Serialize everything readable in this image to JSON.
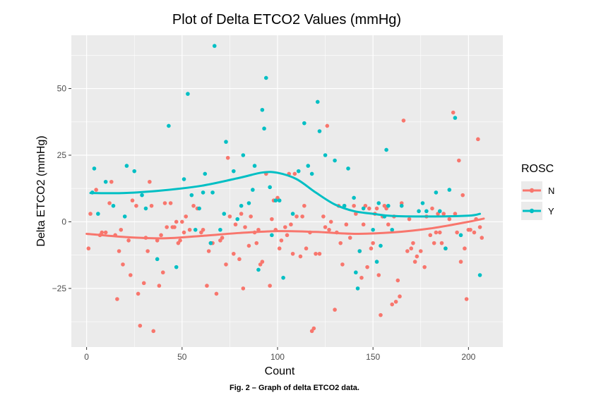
{
  "caption": "Fig. 2 – Graph of delta ETCO2 data.",
  "chart_data": {
    "type": "scatter",
    "title": "Plot of Delta ETCO2 Values (mmHg)",
    "xlabel": "Count",
    "ylabel": "Delta ETCO2 (mmHg)",
    "xlim": [
      -8,
      218
    ],
    "ylim": [
      -47,
      70
    ],
    "xticks": [
      0,
      50,
      100,
      150,
      200
    ],
    "yticks": [
      -25,
      0,
      25,
      50
    ],
    "yticklabels": [
      "−25",
      "0",
      "25",
      "50"
    ],
    "grid": true,
    "panel_background": "#ebebeb",
    "legend": {
      "title": "ROSC",
      "position": "right"
    },
    "series": [
      {
        "name": "N",
        "color": "#f8766d",
        "points": [
          [
            1,
            -10
          ],
          [
            2,
            3
          ],
          [
            5,
            12
          ],
          [
            7,
            -5
          ],
          [
            8,
            -4
          ],
          [
            10,
            -4
          ],
          [
            12,
            7
          ],
          [
            13,
            15
          ],
          [
            15,
            -5
          ],
          [
            16,
            -29
          ],
          [
            17,
            -11
          ],
          [
            18,
            -3
          ],
          [
            19,
            -16
          ],
          [
            22,
            -7
          ],
          [
            23,
            -20
          ],
          [
            24,
            8
          ],
          [
            26,
            6
          ],
          [
            27,
            -27
          ],
          [
            28,
            -39
          ],
          [
            30,
            -23
          ],
          [
            31,
            -6
          ],
          [
            32,
            -11
          ],
          [
            33,
            15
          ],
          [
            34,
            6
          ],
          [
            35,
            -41
          ],
          [
            37,
            -7
          ],
          [
            38,
            -24
          ],
          [
            39,
            -5
          ],
          [
            40,
            -19
          ],
          [
            41,
            7
          ],
          [
            42,
            -2
          ],
          [
            44,
            7
          ],
          [
            45,
            -2
          ],
          [
            46,
            -2
          ],
          [
            47,
            0
          ],
          [
            48,
            -8
          ],
          [
            49,
            -7
          ],
          [
            50,
            0
          ],
          [
            51,
            -4
          ],
          [
            52,
            2
          ],
          [
            54,
            -3
          ],
          [
            56,
            6
          ],
          [
            58,
            5
          ],
          [
            60,
            -4
          ],
          [
            61,
            -3
          ],
          [
            63,
            -24
          ],
          [
            64,
            -11
          ],
          [
            65,
            -8
          ],
          [
            66,
            -8
          ],
          [
            68,
            -27
          ],
          [
            70,
            -7
          ],
          [
            71,
            -6
          ],
          [
            73,
            -16
          ],
          [
            74,
            24
          ],
          [
            75,
            2
          ],
          [
            77,
            -12
          ],
          [
            78,
            -1
          ],
          [
            80,
            -14
          ],
          [
            81,
            3
          ],
          [
            82,
            -25
          ],
          [
            83,
            -2
          ],
          [
            85,
            -9
          ],
          [
            86,
            2
          ],
          [
            88,
            -4
          ],
          [
            89,
            -8
          ],
          [
            90,
            -3
          ],
          [
            91,
            -16
          ],
          [
            92,
            -15
          ],
          [
            94,
            18
          ],
          [
            96,
            -24
          ],
          [
            97,
            1
          ],
          [
            98,
            8
          ],
          [
            99,
            -3
          ],
          [
            100,
            9
          ],
          [
            101,
            -10
          ],
          [
            102,
            -7
          ],
          [
            104,
            -2
          ],
          [
            105,
            -5
          ],
          [
            106,
            18
          ],
          [
            107,
            -1
          ],
          [
            108,
            -12
          ],
          [
            109,
            18
          ],
          [
            110,
            2
          ],
          [
            112,
            -13
          ],
          [
            113,
            2
          ],
          [
            114,
            6
          ],
          [
            115,
            -10
          ],
          [
            117,
            -4
          ],
          [
            118,
            -41
          ],
          [
            119,
            -40
          ],
          [
            120,
            -12
          ],
          [
            122,
            -12
          ],
          [
            124,
            2
          ],
          [
            125,
            -2
          ],
          [
            126,
            36
          ],
          [
            127,
            -3
          ],
          [
            128,
            0
          ],
          [
            130,
            -33
          ],
          [
            131,
            -4
          ],
          [
            132,
            6
          ],
          [
            133,
            -8
          ],
          [
            134,
            -16
          ],
          [
            135,
            6
          ],
          [
            136,
            -1
          ],
          [
            138,
            -6
          ],
          [
            140,
            6
          ],
          [
            141,
            3
          ],
          [
            143,
            -11
          ],
          [
            144,
            -21
          ],
          [
            145,
            -1
          ],
          [
            146,
            6
          ],
          [
            147,
            -17
          ],
          [
            148,
            5
          ],
          [
            149,
            -10
          ],
          [
            150,
            -8
          ],
          [
            151,
            3
          ],
          [
            152,
            5
          ],
          [
            153,
            -20
          ],
          [
            154,
            -35
          ],
          [
            155,
            2
          ],
          [
            156,
            6
          ],
          [
            157,
            5
          ],
          [
            158,
            -1
          ],
          [
            160,
            -31
          ],
          [
            161,
            2
          ],
          [
            162,
            -30
          ],
          [
            163,
            -22
          ],
          [
            164,
            -28
          ],
          [
            165,
            7
          ],
          [
            166,
            38
          ],
          [
            168,
            -11
          ],
          [
            169,
            1
          ],
          [
            170,
            -10
          ],
          [
            171,
            -8
          ],
          [
            172,
            -15
          ],
          [
            173,
            -13
          ],
          [
            175,
            -11
          ],
          [
            177,
            -17
          ],
          [
            178,
            2
          ],
          [
            180,
            -5
          ],
          [
            181,
            5
          ],
          [
            182,
            -8
          ],
          [
            183,
            -4
          ],
          [
            184,
            3
          ],
          [
            185,
            -4
          ],
          [
            186,
            -8
          ],
          [
            187,
            3
          ],
          [
            188,
            -10
          ],
          [
            190,
            1
          ],
          [
            192,
            41
          ],
          [
            193,
            3
          ],
          [
            194,
            -4
          ],
          [
            195,
            23
          ],
          [
            196,
            -15
          ],
          [
            197,
            10
          ],
          [
            198,
            -10
          ],
          [
            199,
            -29
          ],
          [
            200,
            -3
          ],
          [
            201,
            -3
          ],
          [
            203,
            -4
          ],
          [
            204,
            1
          ],
          [
            205,
            31
          ],
          [
            206,
            -2
          ],
          [
            207,
            -6
          ]
        ],
        "smooth": [
          [
            0,
            -4.5
          ],
          [
            20,
            -5.7
          ],
          [
            40,
            -6.2
          ],
          [
            60,
            -5.3
          ],
          [
            80,
            -4.2
          ],
          [
            100,
            -3.5
          ],
          [
            120,
            -3.8
          ],
          [
            140,
            -4.5
          ],
          [
            160,
            -4
          ],
          [
            180,
            -2.5
          ],
          [
            200,
            0
          ],
          [
            208,
            1.2
          ]
        ]
      },
      {
        "name": "Y",
        "color": "#00bfc4",
        "points": [
          [
            3,
            11
          ],
          [
            4,
            20
          ],
          [
            6,
            3
          ],
          [
            10,
            15
          ],
          [
            14,
            6
          ],
          [
            20,
            2
          ],
          [
            21,
            21
          ],
          [
            25,
            19
          ],
          [
            29,
            10
          ],
          [
            31,
            5
          ],
          [
            37,
            -14
          ],
          [
            43,
            36
          ],
          [
            47,
            -17
          ],
          [
            51,
            16
          ],
          [
            53,
            48
          ],
          [
            55,
            10
          ],
          [
            57,
            -3
          ],
          [
            59,
            5
          ],
          [
            61,
            11
          ],
          [
            62,
            18
          ],
          [
            65,
            -8
          ],
          [
            66,
            11
          ],
          [
            67,
            66
          ],
          [
            70,
            -3
          ],
          [
            72,
            3
          ],
          [
            73,
            30
          ],
          [
            77,
            19
          ],
          [
            79,
            1
          ],
          [
            81,
            6
          ],
          [
            82,
            25
          ],
          [
            85,
            7
          ],
          [
            87,
            12
          ],
          [
            88,
            21
          ],
          [
            90,
            -18
          ],
          [
            92,
            42
          ],
          [
            93,
            35
          ],
          [
            94,
            54
          ],
          [
            96,
            13
          ],
          [
            97,
            -5
          ],
          [
            99,
            8
          ],
          [
            101,
            8
          ],
          [
            103,
            -21
          ],
          [
            108,
            3
          ],
          [
            111,
            19
          ],
          [
            114,
            37
          ],
          [
            116,
            21
          ],
          [
            118,
            18
          ],
          [
            121,
            45
          ],
          [
            122,
            34
          ],
          [
            125,
            25
          ],
          [
            130,
            23
          ],
          [
            135,
            6
          ],
          [
            137,
            20
          ],
          [
            140,
            9
          ],
          [
            141,
            -19
          ],
          [
            142,
            -25
          ],
          [
            143,
            -11
          ],
          [
            145,
            5
          ],
          [
            150,
            -3
          ],
          [
            152,
            -15
          ],
          [
            153,
            7
          ],
          [
            154,
            -9
          ],
          [
            156,
            2
          ],
          [
            157,
            27
          ],
          [
            158,
            6
          ],
          [
            160,
            -3
          ],
          [
            165,
            6
          ],
          [
            174,
            4
          ],
          [
            176,
            7
          ],
          [
            178,
            4
          ],
          [
            183,
            11
          ],
          [
            185,
            4
          ],
          [
            188,
            -10
          ],
          [
            190,
            12
          ],
          [
            193,
            39
          ],
          [
            196,
            -5
          ],
          [
            206,
            -20
          ]
        ],
        "smooth": [
          [
            2,
            10.8
          ],
          [
            20,
            10.8
          ],
          [
            40,
            11.8
          ],
          [
            60,
            13.5
          ],
          [
            80,
            16.5
          ],
          [
            92,
            18.5
          ],
          [
            100,
            18.4
          ],
          [
            110,
            16
          ],
          [
            120,
            11
          ],
          [
            130,
            6.5
          ],
          [
            140,
            4
          ],
          [
            150,
            3
          ],
          [
            160,
            2.2
          ],
          [
            180,
            2
          ],
          [
            200,
            2.3
          ],
          [
            206,
            3
          ]
        ]
      }
    ]
  }
}
